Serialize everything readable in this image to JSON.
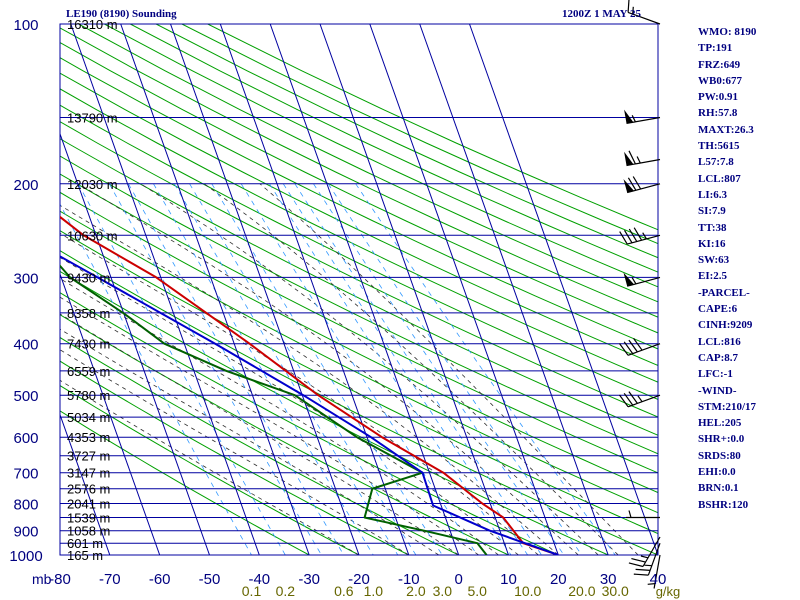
{
  "header": {
    "title": "LE190 (8190) Sounding",
    "time": "1200Z  1 MAY 25"
  },
  "indices": [
    "WMO: 8190",
    "TP:191",
    "FRZ:649",
    "WB0:677",
    "PW:0.91",
    "RH:57.8",
    "MAXT:26.3",
    "TH:5615",
    "L57:7.8",
    "LCL:807",
    "LI:6.3",
    "SI:7.9",
    "TT:38",
    "KI:16",
    "SW:63",
    "EI:2.5",
    "-PARCEL-",
    "CAPE:6",
    "CINH:9209",
    "LCL:816",
    "CAP:8.7",
    "LFC:-1",
    "-WIND-",
    "STM:210/17",
    "HEL:205",
    "SHR+:0.0",
    "SRDS:80",
    "EHI:0.0",
    "BRN:0.1",
    "BSHR:120"
  ],
  "colors": {
    "isobar": "#0000a0",
    "isotherm": "#0000a0",
    "dry_adiabat": "#00a000",
    "moist_adiabat": "#303030",
    "mixing_ratio": "#3399ff",
    "temperature": "#cc0000",
    "dewpoint": "#006000",
    "parcel": "#0000cc",
    "axis_text": "#000080",
    "mixing_ratio_text": "#666600"
  },
  "chart_data": {
    "type": "line",
    "title": "LE190 (8190) Sounding",
    "subtitle": "1200Z  1 MAY 25",
    "x_axis_unit": "",
    "y_axis_unit": "mb",
    "x_ticks": [
      "-80",
      "-70",
      "-60",
      "-50",
      "-40",
      "-30",
      "-20",
      "-10",
      "0",
      "10",
      "20",
      "30",
      "40"
    ],
    "x_tick_values": [
      -80,
      -70,
      -60,
      -50,
      -40,
      -30,
      -20,
      -10,
      0,
      10,
      20,
      30,
      40
    ],
    "y_ticks": [
      "100",
      "200",
      "300",
      "400",
      "500",
      "600",
      "700",
      "800",
      "900",
      "1000"
    ],
    "y_tick_values": [
      100,
      200,
      300,
      400,
      500,
      600,
      700,
      800,
      900,
      1000
    ],
    "xlim": [
      -80,
      40
    ],
    "ylim": [
      1000,
      100
    ],
    "log_y": true,
    "mixing_ratio_labels": [
      "0.1",
      "0.2",
      "0.6",
      "1.0",
      "2.0",
      "3.0",
      "5.0",
      "10.0",
      "20.0",
      "30.0"
    ],
    "mixing_ratio_unit": "g/kg",
    "height_labels": [
      {
        "p": 100,
        "label": "16310 m"
      },
      {
        "p": 150,
        "label": "13790 m"
      },
      {
        "p": 200,
        "label": "12030 m"
      },
      {
        "p": 250,
        "label": "10630 m"
      },
      {
        "p": 300,
        "label": "9430 m"
      },
      {
        "p": 350,
        "label": "8358 m"
      },
      {
        "p": 400,
        "label": "7430 m"
      },
      {
        "p": 450,
        "label": "6559 m"
      },
      {
        "p": 500,
        "label": "5780 m"
      },
      {
        "p": 550,
        "label": "5034 m"
      },
      {
        "p": 600,
        "label": "4353 m"
      },
      {
        "p": 650,
        "label": "3727 m"
      },
      {
        "p": 700,
        "label": "3147 m"
      },
      {
        "p": 750,
        "label": "2576 m"
      },
      {
        "p": 800,
        "label": "2041 m"
      },
      {
        "p": 850,
        "label": "1539 m"
      },
      {
        "p": 900,
        "label": "1058 m"
      },
      {
        "p": 950,
        "label": "601 m"
      },
      {
        "p": 1000,
        "label": "165 m"
      }
    ],
    "series": [
      {
        "name": "Temperature",
        "points": [
          {
            "p": 1000,
            "x": 20.0
          },
          {
            "p": 950,
            "x": 13.8
          },
          {
            "p": 850,
            "x": 11.6
          },
          {
            "p": 800,
            "x": 8.4
          },
          {
            "p": 700,
            "x": 2.8
          },
          {
            "p": 600,
            "x": -7.0
          },
          {
            "p": 500,
            "x": -16.8
          },
          {
            "p": 400,
            "x": -26.9
          },
          {
            "p": 300,
            "x": -40.9
          },
          {
            "p": 250,
            "x": -52.5
          },
          {
            "p": 200,
            "x": -62.1
          },
          {
            "p": 180,
            "x": -64.6
          },
          {
            "p": 150,
            "x": -64.8
          },
          {
            "p": 100,
            "x": -59.6
          }
        ]
      },
      {
        "name": "Dewpoint",
        "points": [
          {
            "p": 1000,
            "x": 5.6
          },
          {
            "p": 950,
            "x": 4.6
          },
          {
            "p": 900,
            "x": -5.2
          },
          {
            "p": 850,
            "x": -16.2
          },
          {
            "p": 750,
            "x": -12.6
          },
          {
            "p": 700,
            "x": -1.4
          },
          {
            "p": 600,
            "x": -12.0
          },
          {
            "p": 500,
            "x": -21.5
          },
          {
            "p": 450,
            "x": -33.5
          },
          {
            "p": 400,
            "x": -44.0
          },
          {
            "p": 350,
            "x": -50.1
          },
          {
            "p": 300,
            "x": -58.2
          },
          {
            "p": 250,
            "x": -62.6
          },
          {
            "p": 200,
            "x": -74.9
          },
          {
            "p": 180,
            "x": -78.0
          },
          {
            "p": 150,
            "x": -80.0
          }
        ]
      },
      {
        "name": "Parcel",
        "points": [
          {
            "p": 1000,
            "x": 20.0
          },
          {
            "p": 900,
            "x": 8.0
          },
          {
            "p": 807,
            "x": -1.6
          },
          {
            "p": 700,
            "x": -1.4
          },
          {
            "p": 600,
            "x": -9.2
          },
          {
            "p": 500,
            "x": -19.8
          },
          {
            "p": 400,
            "x": -33.8
          },
          {
            "p": 300,
            "x": -52.7
          },
          {
            "p": 250,
            "x": -64.8
          },
          {
            "p": 200,
            "x": -78.2
          }
        ]
      }
    ],
    "wind_barbs": [
      {
        "p": 100,
        "dir": 290,
        "spd": 15
      },
      {
        "p": 150,
        "dir": 260,
        "spd": 55
      },
      {
        "p": 180,
        "dir": 260,
        "spd": 65
      },
      {
        "p": 200,
        "dir": 255,
        "spd": 70
      },
      {
        "p": 250,
        "dir": 255,
        "spd": 45
      },
      {
        "p": 300,
        "dir": 255,
        "spd": 55
      },
      {
        "p": 400,
        "dir": 250,
        "spd": 40
      },
      {
        "p": 500,
        "dir": 250,
        "spd": 35
      },
      {
        "p": 850,
        "dir": 270,
        "spd": 5
      },
      {
        "p": 925,
        "dir": 210,
        "spd": 25
      },
      {
        "p": 950,
        "dir": 200,
        "spd": 25
      },
      {
        "p": 1000,
        "dir": 190,
        "spd": 5
      }
    ]
  }
}
